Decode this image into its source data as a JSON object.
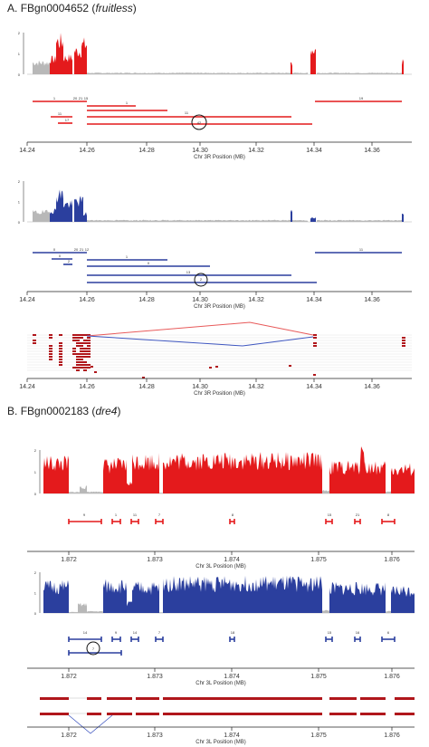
{
  "panels": [
    {
      "letter": "A.",
      "gene_id": "FBgn0004652",
      "gene_name": "fruitless",
      "x_ticks": [
        "14.24",
        "14.26",
        "14.28",
        "14.30",
        "14.32",
        "14.34",
        "14.36"
      ],
      "axis_label": "Chr 3R Position (MB)",
      "y_ticks": [
        "2",
        "1",
        "0"
      ]
    },
    {
      "letter": "B.",
      "gene_id": "FBgn0002183",
      "gene_name": "dre4",
      "x_ticks": [
        "1.872",
        "1.873",
        "1.874",
        "1.875",
        "1.876"
      ],
      "axis_label": "Chr 3L Position (MB)",
      "y_ticks": [
        "2",
        "1",
        "0"
      ]
    }
  ],
  "feature_labels": {
    "fru_red": [
      "1",
      "20",
      "21",
      "15",
      "1",
      "11",
      "19",
      "11",
      "17",
      "42"
    ],
    "fru_blue": [
      "0",
      "20",
      "21",
      "12",
      "1",
      "0",
      "2",
      "13",
      "0",
      "2",
      "11"
    ],
    "dre4_red": [
      "9",
      "1",
      "11",
      "7",
      "8",
      "15",
      "21",
      "8"
    ],
    "dre4_blue": [
      "14",
      "9",
      "14",
      "7",
      "18",
      "15",
      "16",
      "6",
      "7"
    ]
  },
  "colors": {
    "red": "#e41a1c",
    "blue": "#2b3f9e",
    "grey": "#b8b8b8",
    "dark_red": "#b0161b"
  },
  "chart_data": [
    {
      "type": "area",
      "series": [
        {
          "name": "",
          "color": "#e41a1c"
        }
      ],
      "x_ticks": [
        14.24,
        14.26,
        14.28,
        14.3,
        14.32,
        14.34,
        14.36
      ],
      "xlabel": "Chr 3R Position (MB)",
      "ylim": [
        0,
        2
      ]
    },
    {
      "type": "area",
      "series": [
        {
          "name": "",
          "color": "#2b3f9e"
        }
      ],
      "x_ticks": [
        14.24,
        14.26,
        14.28,
        14.3,
        14.32,
        14.34,
        14.36
      ],
      "xlabel": "Chr 3R Position (MB)",
      "ylim": [
        0,
        2
      ]
    },
    {
      "type": "area",
      "series": [
        {
          "name": "",
          "color": "#e41a1c"
        }
      ],
      "x_ticks": [
        1.872,
        1.873,
        1.874,
        1.875,
        1.876
      ],
      "xlabel": "Chr 3L Position (MB)",
      "ylim": [
        0,
        2
      ]
    },
    {
      "type": "area",
      "series": [
        {
          "name": "",
          "color": "#2b3f9e"
        }
      ],
      "x_ticks": [
        1.872,
        1.873,
        1.874,
        1.875,
        1.876
      ],
      "xlabel": "Chr 3L Position (MB)",
      "ylim": [
        0,
        2
      ]
    }
  ]
}
